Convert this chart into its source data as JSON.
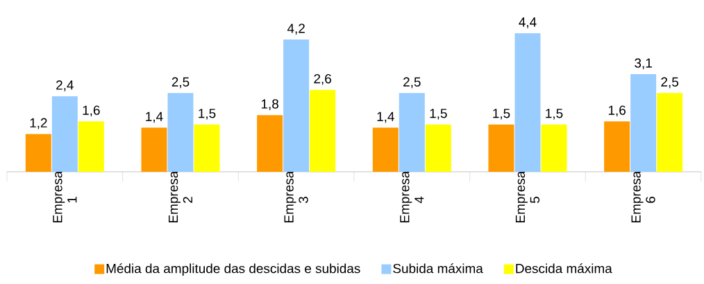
{
  "chart_data": {
    "type": "bar",
    "categories": [
      "Empresa 1",
      "Empresa 2",
      "Empresa 3",
      "Empresa 4",
      "Empresa 5",
      "Empresa 6"
    ],
    "series": [
      {
        "name": "Média da amplitude das descidas e subidas",
        "color": "#ff9900",
        "values": [
          1.2,
          1.4,
          1.8,
          1.4,
          1.5,
          1.6
        ],
        "value_labels": [
          "1,2",
          "1,4",
          "1,8",
          "1,4",
          "1,5",
          "1,6"
        ]
      },
      {
        "name": "Subida máxima",
        "color": "#99ccff",
        "values": [
          2.4,
          2.5,
          4.2,
          2.5,
          4.4,
          3.1
        ],
        "value_labels": [
          "2,4",
          "2,5",
          "4,2",
          "2,5",
          "4,4",
          "3,1"
        ]
      },
      {
        "name": "Descida máxima",
        "color": "#ffff00",
        "values": [
          1.6,
          1.5,
          2.6,
          1.5,
          1.5,
          2.5
        ],
        "value_labels": [
          "1,6",
          "1,5",
          "2,6",
          "1,5",
          "1,5",
          "2,5"
        ]
      }
    ],
    "legend": "bottom"
  }
}
